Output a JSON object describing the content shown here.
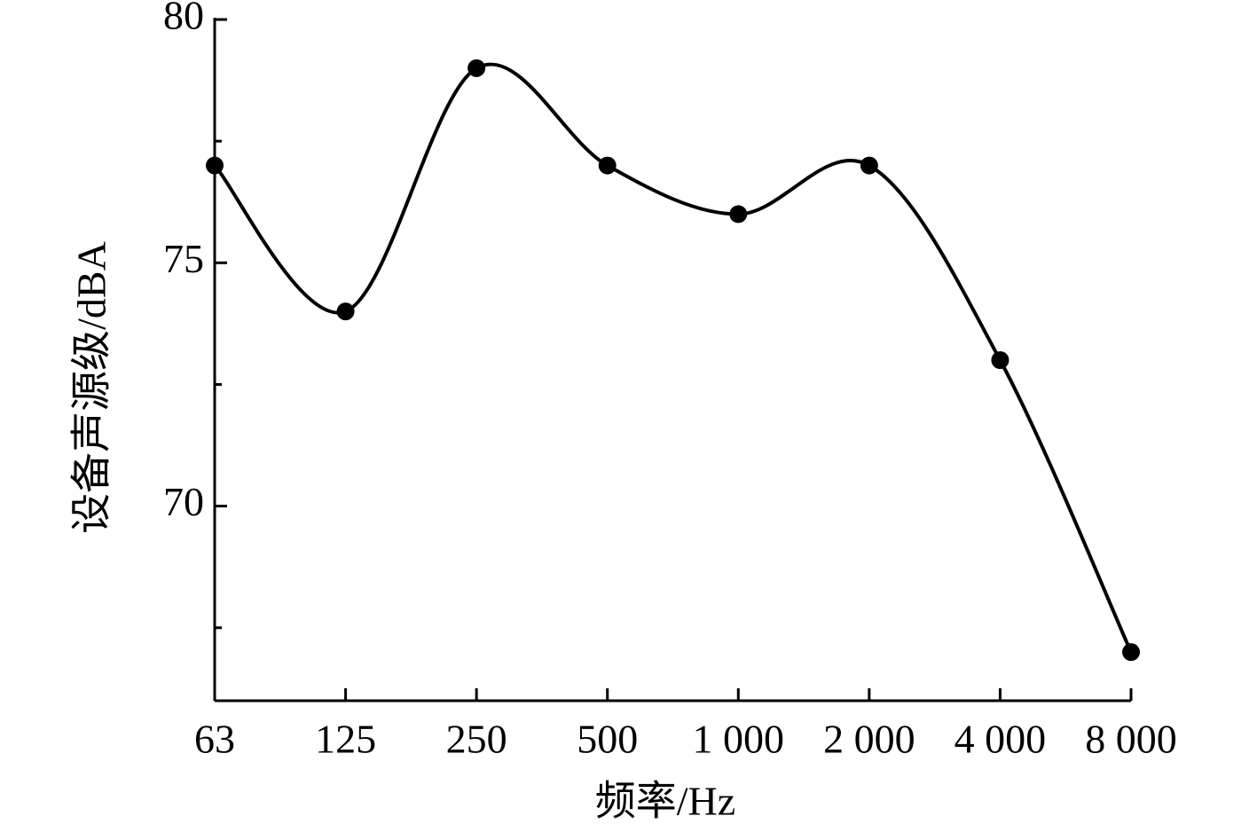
{
  "chart_data": {
    "type": "line",
    "x_label": "频率/Hz",
    "y_label": "设备声源级/dBA",
    "categories": [
      "63",
      "125",
      "250",
      "500",
      "1 000",
      "2 000",
      "4 000",
      "8 000"
    ],
    "values": [
      77,
      74,
      79,
      77,
      76,
      77,
      73,
      67
    ],
    "color": "#000000",
    "ylim": [
      66,
      80
    ],
    "yticks": [
      70,
      75,
      80
    ],
    "yminorticks": [
      67.5,
      72.5,
      77.5
    ],
    "smooth": true,
    "markers": true,
    "grid": false
  }
}
